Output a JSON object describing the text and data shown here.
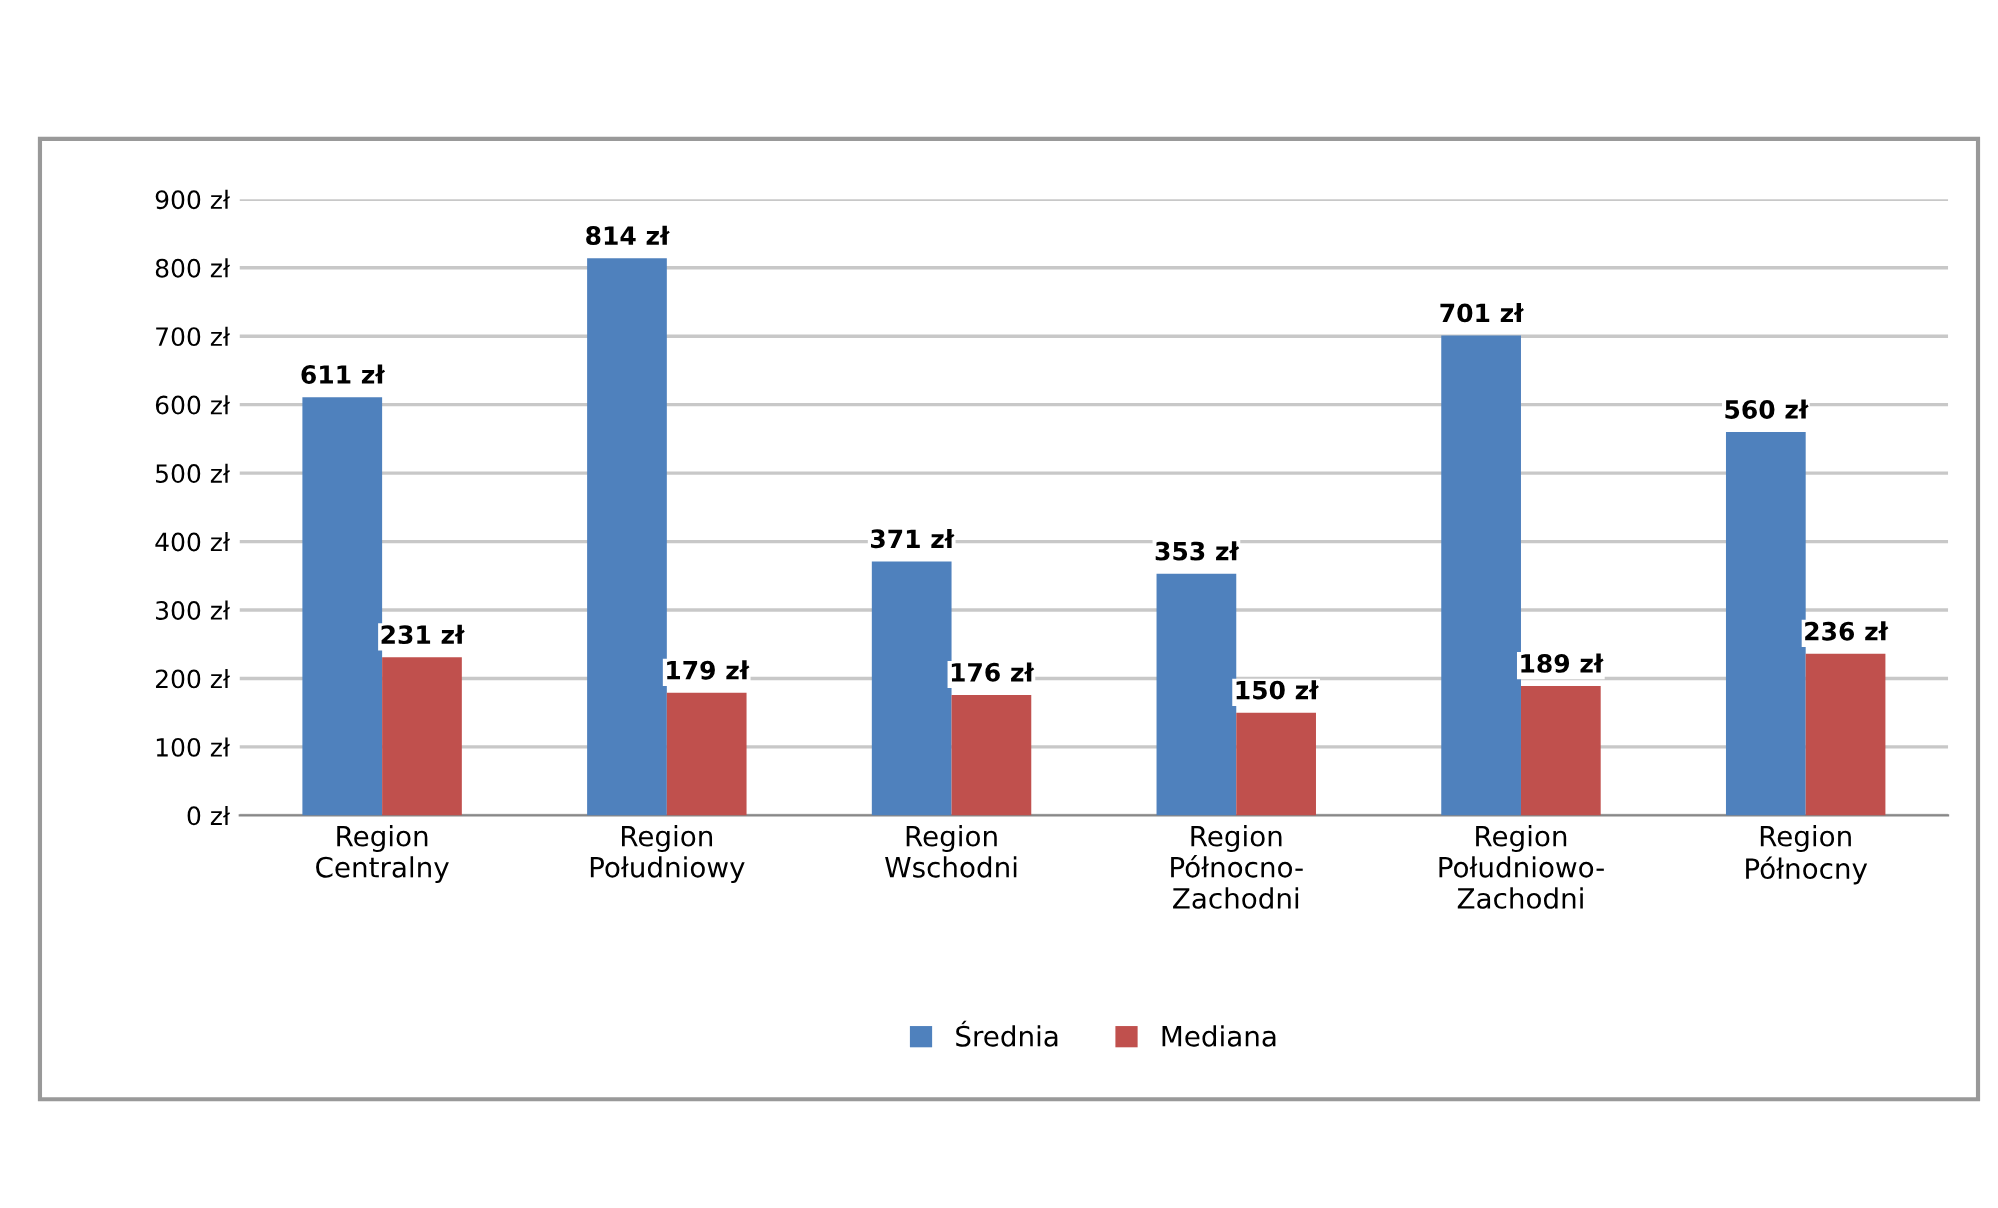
{
  "chart_data": {
    "type": "bar",
    "categories": [
      "Region\nCentralny",
      "Region\nPołudniowy",
      "Region\nWschodni",
      "Region\nPółnocno-\nZachodni",
      "Region\nPołudniowo-\nZachodni",
      "Region\nPółnocny"
    ],
    "series": [
      {
        "name": "Średnia",
        "color": "#4f81bd",
        "values": [
          611,
          814,
          371,
          353,
          701,
          560
        ],
        "value_labels": [
          "611 zł",
          "814 zł",
          "371 zł",
          "353 zł",
          "701 zł",
          "560 zł"
        ]
      },
      {
        "name": "Mediana",
        "color": "#c0504d",
        "values": [
          231,
          179,
          176,
          150,
          189,
          236
        ],
        "value_labels": [
          "231 zł",
          "179 zł",
          "176 zł",
          "150 zł",
          "189 zł",
          "236 zł"
        ]
      }
    ],
    "ylim": [
      0,
      900
    ],
    "yticks": [
      {
        "value": 0,
        "label": "0 zł"
      },
      {
        "value": 100,
        "label": "100 zł"
      },
      {
        "value": 200,
        "label": "200 zł"
      },
      {
        "value": 300,
        "label": "300 zł"
      },
      {
        "value": 400,
        "label": "400 zł"
      },
      {
        "value": 500,
        "label": "500 zł"
      },
      {
        "value": 600,
        "label": "600 zł"
      },
      {
        "value": 700,
        "label": "700 zł"
      },
      {
        "value": 800,
        "label": "800 zł"
      },
      {
        "value": 900,
        "label": "900 zł"
      }
    ],
    "grid": "y",
    "legend": "bottom"
  }
}
